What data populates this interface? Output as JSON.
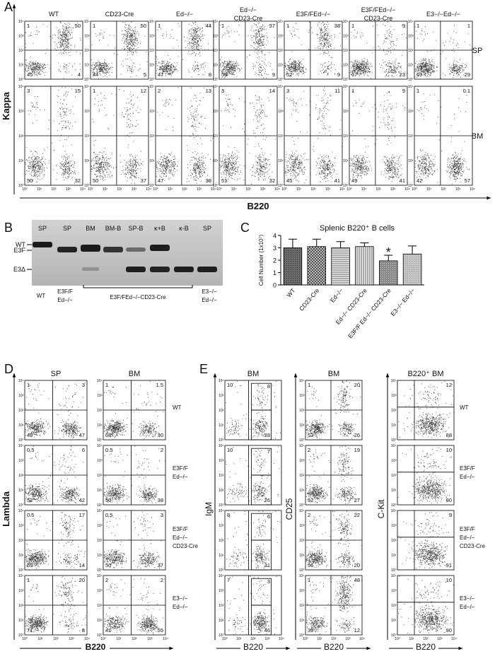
{
  "axis_ticks": [
    "10⁰",
    "10¹",
    "10²",
    "10³",
    "10⁴"
  ],
  "panel_a": {
    "label": "A",
    "y_label": "Kappa",
    "x_label": "B220",
    "columns": [
      [
        "WT"
      ],
      [
        "CD23-Cre"
      ],
      [
        "Ed−/−"
      ],
      [
        "Ed−/−",
        "CD23-Cre"
      ],
      [
        "E3F/FEd−/−"
      ],
      [
        "E3F/FEd−/−",
        "CD23-Cre"
      ],
      [
        "E3−/−Ed−/−"
      ]
    ],
    "rows": [
      {
        "label": "SP",
        "plots": [
          [
            1,
            50,
            45,
            4
          ],
          [
            1,
            50,
            44,
            5
          ],
          [
            1,
            44,
            47,
            8
          ],
          [
            1,
            37,
            53,
            9
          ],
          [
            1,
            38,
            52,
            9
          ],
          [
            1,
            9,
            67,
            23
          ],
          [
            1,
            1,
            69,
            29
          ]
        ]
      },
      {
        "label": "BM",
        "plots": [
          [
            3,
            15,
            50,
            32
          ],
          [
            1,
            12,
            50,
            37
          ],
          [
            2,
            13,
            47,
            38
          ],
          [
            3,
            14,
            51,
            32
          ],
          [
            3,
            11,
            45,
            41
          ],
          [
            1,
            9,
            49,
            41
          ],
          [
            1,
            0.1,
            42,
            57
          ]
        ]
      }
    ]
  },
  "panel_b": {
    "label": "B",
    "lanes": [
      "SP",
      "SP",
      "BM",
      "BM-B",
      "SP-B",
      "κ+B",
      "κ-B",
      "SP"
    ],
    "bands": [
      "WT",
      "E3F",
      "E3Δ"
    ],
    "genotypes": [
      [
        "WT"
      ],
      [
        "E3F/F",
        "Ed−/−"
      ],
      [
        "E3F/FEd−/−CD23-Cre"
      ],
      [
        "E3−/−",
        "Ed−/−"
      ]
    ]
  },
  "chart_data": {
    "type": "bar",
    "label": "C",
    "title": "Splenic B220⁺ B cells",
    "y_label": "Cell Number (1x10⁷)",
    "categories": [
      "WT",
      "CD23-Cre",
      "Ed−/−",
      "Ed−/− CD23-Cre",
      "E3F/F Ed−/− CD23-Cre",
      "E3−/− Ed−/−"
    ],
    "values": [
      3.0,
      3.1,
      3.0,
      3.1,
      1.95,
      2.5
    ],
    "errors": [
      0.7,
      0.6,
      0.5,
      0.3,
      0.45,
      0.65
    ],
    "ylim": [
      0,
      4
    ],
    "yticks": [
      0,
      1,
      2,
      3,
      4
    ],
    "annotations": [
      {
        "text": "*",
        "category": "E3F/F Ed−/− CD23-Cre"
      }
    ]
  },
  "panel_d": {
    "label": "D",
    "y_label": "Lambda",
    "x_label": "B220",
    "row_labels": [
      [
        "WT"
      ],
      [
        "E3F/F",
        "Ed−/−"
      ],
      [
        "E3F/F",
        "Ed−/−",
        "CD23-Cre"
      ],
      [
        "E3−/−",
        "Ed−/−"
      ]
    ],
    "columns": [
      {
        "header": "SP",
        "plots": [
          [
            1,
            3,
            49,
            47
          ],
          [
            0.5,
            6,
            52,
            42
          ],
          [
            0.5,
            17,
            69,
            14
          ],
          [
            1,
            20,
            71,
            8
          ]
        ]
      },
      {
        "header": "BM",
        "plots": [
          [
            1,
            1.5,
            68,
            30
          ],
          [
            0.5,
            2,
            50,
            38
          ],
          [
            0.5,
            3,
            50,
            37
          ],
          [
            2,
            2,
            41,
            55
          ]
        ]
      }
    ]
  },
  "panel_e": {
    "label": "E",
    "x_label": "B220",
    "row_labels": [
      [
        "WT"
      ],
      [
        "E3F/F",
        "Ed−/−"
      ],
      [
        "E3F/F",
        "Ed−/−",
        "CD23-Cre"
      ],
      [
        "E3−/−",
        "Ed−/−"
      ]
    ],
    "columns": [
      {
        "header": "BM",
        "y_label": "IgM",
        "plots": [
          [
            10,
            8,
            28
          ],
          [
            10,
            7,
            26
          ],
          [
            8,
            6,
            31
          ],
          [
            7,
            3,
            46
          ]
        ]
      },
      {
        "header": "BM",
        "y_label": "CD25",
        "plots": [
          [
            1,
            20,
            53,
            26
          ],
          [
            2,
            19,
            52,
            27
          ],
          [
            2,
            22,
            56,
            20
          ],
          [
            1,
            48,
            39,
            12
          ]
        ]
      },
      {
        "header": "B220⁺ BM",
        "y_label": "C-Kit",
        "plots": [
          [
            12,
            88
          ],
          [
            10,
            90
          ],
          [
            9,
            91
          ],
          [
            10,
            90
          ]
        ]
      }
    ]
  }
}
